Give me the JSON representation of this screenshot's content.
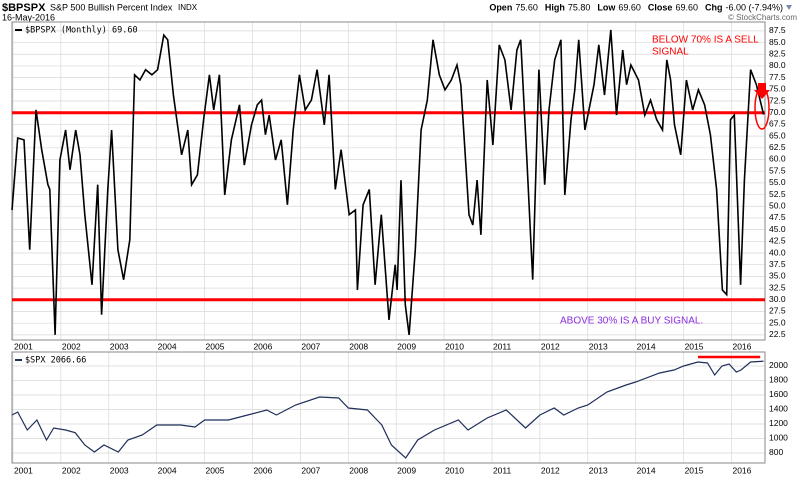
{
  "header": {
    "symbol": "$BPSPX",
    "name": "S&P 500 Bullish Percent Index",
    "exchange": "INDX",
    "date": "16-May-2016",
    "quote": [
      {
        "label": "Open",
        "value": "75.60"
      },
      {
        "label": "High",
        "value": "75.80"
      },
      {
        "label": "Low",
        "value": "69.60"
      },
      {
        "label": "Close",
        "value": "69.60"
      },
      {
        "label": "Chg",
        "value": "-6.00 (-7.94%)"
      }
    ],
    "credit": "© StockCharts.com"
  },
  "chart_data": [
    {
      "type": "line",
      "x": [
        2000.98,
        2001.1,
        2001.23,
        2001.35,
        2001.48,
        2001.6,
        2001.73,
        2001.77,
        2001.88,
        2001.98,
        2002.1,
        2002.19,
        2002.31,
        2002.4,
        2002.5,
        2002.65,
        2002.77,
        2002.85,
        2002.98,
        2003.06,
        2003.19,
        2003.31,
        2003.44,
        2003.54,
        2003.65,
        2003.77,
        2003.9,
        2004.02,
        2004.15,
        2004.23,
        2004.35,
        2004.52,
        2004.65,
        2004.73,
        2004.85,
        2004.98,
        2005.1,
        2005.19,
        2005.31,
        2005.42,
        2005.56,
        2005.73,
        2005.83,
        2005.98,
        2006.1,
        2006.19,
        2006.27,
        2006.35,
        2006.48,
        2006.6,
        2006.73,
        2006.85,
        2006.98,
        2007.1,
        2007.23,
        2007.35,
        2007.5,
        2007.6,
        2007.73,
        2007.85,
        2008.02,
        2008.15,
        2008.19,
        2008.31,
        2008.44,
        2008.56,
        2008.69,
        2008.85,
        2008.98,
        2009.02,
        2009.1,
        2009.19,
        2009.27,
        2009.4,
        2009.52,
        2009.65,
        2009.77,
        2009.9,
        2010.02,
        2010.15,
        2010.27,
        2010.35,
        2010.52,
        2010.6,
        2010.69,
        2010.77,
        2010.9,
        2011.02,
        2011.15,
        2011.27,
        2011.4,
        2011.52,
        2011.6,
        2011.73,
        2011.85,
        2011.98,
        2012.1,
        2012.19,
        2012.31,
        2012.44,
        2012.52,
        2012.65,
        2012.73,
        2012.81,
        2012.94,
        2013.13,
        2013.23,
        2013.35,
        2013.48,
        2013.6,
        2013.73,
        2013.81,
        2013.9,
        2014.06,
        2014.19,
        2014.31,
        2014.44,
        2014.56,
        2014.65,
        2014.73,
        2014.81,
        2014.94,
        2015.06,
        2015.19,
        2015.31,
        2015.44,
        2015.56,
        2015.69,
        2015.81,
        2015.9,
        2015.98,
        2016.06,
        2016.19,
        2016.27,
        2016.4,
        2016.52,
        2016.67
      ],
      "series": [
        {
          "name": "$BPSPX (Monthly) 69.60",
          "color": "#000000",
          "values": [
            49.2,
            64.6,
            64.2,
            40.7,
            70.6,
            62.1,
            54.6,
            53.6,
            22.5,
            59.9,
            66.3,
            57.8,
            66.3,
            61.0,
            48.2,
            33.2,
            54.6,
            26.8,
            53.6,
            66.3,
            40.7,
            34.3,
            42.8,
            78.1,
            77.0,
            79.2,
            78.1,
            79.2,
            86.6,
            85.6,
            73.8,
            61.0,
            66.3,
            54.6,
            56.7,
            68.5,
            78.1,
            70.6,
            78.1,
            52.4,
            64.2,
            71.7,
            58.8,
            67.4,
            71.7,
            72.7,
            65.3,
            69.5,
            59.9,
            64.2,
            50.3,
            66.3,
            78.1,
            70.6,
            72.7,
            79.2,
            67.4,
            78.1,
            53.6,
            62.1,
            48.2,
            49.2,
            32.1,
            50.3,
            53.6,
            33.2,
            48.2,
            25.7,
            37.5,
            32.1,
            55.6,
            28.9,
            22.5,
            40.7,
            66.3,
            72.7,
            85.6,
            78.1,
            74.9,
            77.0,
            80.2,
            76.0,
            48.2,
            46.0,
            55.6,
            43.9,
            77.0,
            63.1,
            84.5,
            81.3,
            70.6,
            83.4,
            85.6,
            59.9,
            34.3,
            79.2,
            54.6,
            70.6,
            81.3,
            85.6,
            52.4,
            68.5,
            74.9,
            85.6,
            66.3,
            76.0,
            84.5,
            73.8,
            87.7,
            69.5,
            83.4,
            76.0,
            80.2,
            77.0,
            69.5,
            72.7,
            68.5,
            66.3,
            81.3,
            77.0,
            67.4,
            61.0,
            77.0,
            70.6,
            74.9,
            71.7,
            65.3,
            53.6,
            32.1,
            31.1,
            68.5,
            69.5,
            33.2,
            55.6,
            79.2,
            76.0,
            69.6
          ]
        }
      ],
      "xlim": [
        2000.98,
        2016.7
      ],
      "xticks": [
        2001,
        2002,
        2003,
        2004,
        2005,
        2006,
        2007,
        2008,
        2009,
        2010,
        2011,
        2012,
        2013,
        2014,
        2015,
        2016
      ],
      "ylim": [
        21.4,
        89.4
      ],
      "yticks": [
        22.5,
        {
          "value": 25,
          "label": "25.0"
        },
        27.5,
        {
          "value": 30,
          "label": "30.0"
        },
        32.5,
        {
          "value": 35,
          "label": "35.0"
        },
        37.5,
        {
          "value": 40,
          "label": "40.0"
        },
        42.5,
        {
          "value": 45,
          "label": "45.0"
        },
        47.5,
        {
          "value": 50,
          "label": "50.0"
        },
        52.5,
        {
          "value": 55,
          "label": "55.0"
        },
        57.5,
        {
          "value": 60,
          "label": "60.0"
        },
        62.5,
        {
          "value": 65,
          "label": "65.0"
        },
        67.5,
        {
          "value": 70,
          "label": "70.0"
        },
        72.5,
        {
          "value": 75,
          "label": "75.0"
        },
        77.5,
        {
          "value": 80,
          "label": "80.0"
        },
        82.5,
        {
          "value": 85,
          "label": "85.0"
        },
        87.5
      ],
      "grid": true,
      "reference_lines": [
        {
          "value": 70,
          "color": "#ff0000"
        },
        {
          "value": 30,
          "color": "#ff0000"
        }
      ],
      "annotations": [
        {
          "text": "BELOW 70% IS A SELL",
          "color": "#ff0000"
        },
        {
          "text": "SIGNAL",
          "color": "#ff0000"
        },
        {
          "text": "ABOVE 30% IS A BUY SIGNAL.",
          "color": "#8a2be2"
        }
      ]
    },
    {
      "type": "line",
      "x": [
        2000.98,
        2001.1,
        2001.3,
        2001.5,
        2001.7,
        2001.85,
        2002.1,
        2002.3,
        2002.5,
        2002.7,
        2002.9,
        2003.2,
        2003.4,
        2003.7,
        2004.0,
        2004.5,
        2004.8,
        2005.0,
        2005.5,
        2005.9,
        2006.3,
        2006.5,
        2006.9,
        2007.4,
        2007.8,
        2008.0,
        2008.4,
        2008.7,
        2008.9,
        2009.2,
        2009.45,
        2009.8,
        2010.3,
        2010.5,
        2010.9,
        2011.3,
        2011.7,
        2012.0,
        2012.3,
        2012.5,
        2012.8,
        2013.0,
        2013.4,
        2013.8,
        2014.0,
        2014.5,
        2014.8,
        2015.0,
        2015.3,
        2015.5,
        2015.65,
        2015.8,
        2015.95,
        2016.1,
        2016.2,
        2016.4,
        2016.67
      ],
      "series": [
        {
          "name": "$SPX 2066.66",
          "color": "#1f2f5a",
          "values": [
            1324,
            1366,
            1117,
            1255,
            979,
            1145,
            1117,
            1080,
            910,
            814,
            910,
            814,
            979,
            1048,
            1186,
            1186,
            1159,
            1255,
            1255,
            1324,
            1393,
            1324,
            1462,
            1572,
            1559,
            1421,
            1393,
            1186,
            910,
            731,
            979,
            1117,
            1255,
            1117,
            1283,
            1393,
            1145,
            1324,
            1421,
            1324,
            1421,
            1462,
            1641,
            1738,
            1779,
            1903,
            1945,
            2000,
            2055,
            2041,
            1876,
            2000,
            2028,
            1917,
            1945,
            2055,
            2066.66
          ]
        }
      ],
      "xlim": [
        2000.98,
        2016.7
      ],
      "xticks": [
        2001,
        2002,
        2003,
        2004,
        2005,
        2006,
        2007,
        2008,
        2009,
        2010,
        2011,
        2012,
        2013,
        2014,
        2015,
        2016
      ],
      "ylim": [
        662,
        2193
      ],
      "yticks": [
        800,
        1000,
        1200,
        1400,
        1600,
        1800,
        2000
      ],
      "grid": true,
      "reference_segments": [
        {
          "value": 2124,
          "x": [
            2015.3,
            2016.6
          ],
          "color": "#ff0000"
        }
      ]
    }
  ]
}
